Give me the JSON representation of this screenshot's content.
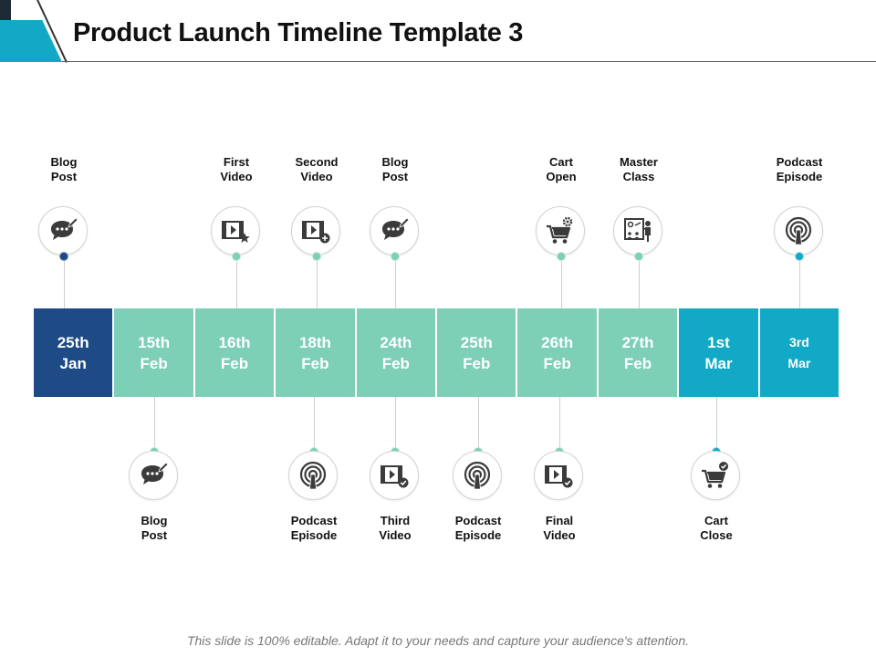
{
  "title": "Product Launch Timeline Template 3",
  "footer": "This slide is 100% editable. Adapt it to your needs and capture your audience's attention.",
  "colors": {
    "dark_blue": "#1e4a85",
    "mint": "#7dcfb6",
    "teal": "#12a9c6",
    "dot_mint_edge": "#bfe8da",
    "dot_teal_edge": "#9adbe9"
  },
  "segments": [
    {
      "line1": "25th",
      "line2": "Jan"
    },
    {
      "line1": "15th",
      "line2": "Feb"
    },
    {
      "line1": "16th",
      "line2": "Feb"
    },
    {
      "line1": "18th",
      "line2": "Feb"
    },
    {
      "line1": "24th",
      "line2": "Feb"
    },
    {
      "line1": "25th",
      "line2": "Feb"
    },
    {
      "line1": "26th",
      "line2": "Feb"
    },
    {
      "line1": "27th",
      "line2": "Feb"
    },
    {
      "line1": "1st",
      "line2": "Mar"
    },
    {
      "line1": "3rd",
      "line2": "Mar"
    }
  ],
  "events_top": [
    {
      "line1": "Blog",
      "line2": "Post",
      "icon": "blog-chat-icon"
    },
    {
      "line1": "First",
      "line2": "Video",
      "icon": "video-star-icon"
    },
    {
      "line1": "Second",
      "line2": "Video",
      "icon": "video-plus-icon"
    },
    {
      "line1": "Blog",
      "line2": "Post",
      "icon": "blog-chat-icon"
    },
    {
      "line1": "Cart",
      "line2": "Open",
      "icon": "cart-gear-icon"
    },
    {
      "line1": "Master",
      "line2": "Class",
      "icon": "classroom-icon"
    },
    {
      "line1": "Podcast",
      "line2": "Episode",
      "icon": "podcast-icon"
    }
  ],
  "events_bottom": [
    {
      "line1": "Blog",
      "line2": "Post",
      "icon": "blog-chat-icon"
    },
    {
      "line1": "Podcast",
      "line2": "Episode",
      "icon": "podcast-icon"
    },
    {
      "line1": "Third",
      "line2": "Video",
      "icon": "video-check-icon"
    },
    {
      "line1": "Podcast",
      "line2": "Episode",
      "icon": "podcast-icon"
    },
    {
      "line1": "Final",
      "line2": "Video",
      "icon": "video-check-icon"
    },
    {
      "line1": "Cart",
      "line2": "Close",
      "icon": "cart-check-icon"
    }
  ]
}
